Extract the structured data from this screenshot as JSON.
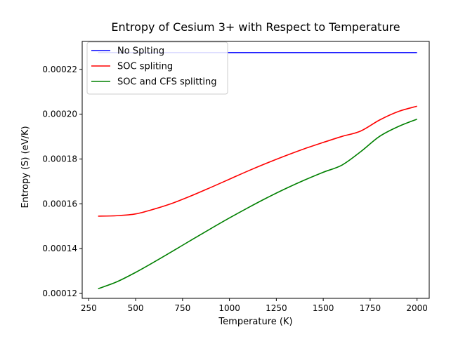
{
  "chart_data": {
    "type": "line",
    "title": "Entropy of Cesium 3+ with Respect to Temperature",
    "xlabel": "Temperature (K)",
    "ylabel": "Entropy (S) (eV/K)",
    "xlim": [
      215,
      2065
    ],
    "ylim": [
      0.0001178,
      0.0002325
    ],
    "xticks": [
      250,
      500,
      750,
      1000,
      1250,
      1500,
      1750,
      2000
    ],
    "xtick_labels": [
      "250",
      "500",
      "750",
      "1000",
      "1250",
      "1500",
      "1750",
      "2000"
    ],
    "yticks": [
      0.00012,
      0.00014,
      0.00016,
      0.00018,
      0.0002,
      0.00022
    ],
    "ytick_labels": [
      "0.00012",
      "0.00014",
      "0.00016",
      "0.00018",
      "0.00020",
      "0.00022"
    ],
    "grid": false,
    "legend_position": "top-left",
    "x": [
      300,
      400,
      500,
      600,
      700,
      800,
      900,
      1000,
      1100,
      1200,
      1300,
      1400,
      1500,
      1600,
      1700,
      1800,
      1900,
      2000
    ],
    "series": [
      {
        "name": "No Splting",
        "color": "#0000ff",
        "values": [
          0.0002275,
          0.0002275,
          0.0002275,
          0.0002275,
          0.0002275,
          0.0002275,
          0.0002275,
          0.0002275,
          0.0002275,
          0.0002275,
          0.0002275,
          0.0002275,
          0.0002275,
          0.0002275,
          0.0002275,
          0.0002275,
          0.0002275,
          0.0002275
        ]
      },
      {
        "name": "SOC spliting",
        "color": "#ff0000",
        "values": [
          0.0001545,
          0.0001547,
          0.0001555,
          0.0001577,
          0.0001604,
          0.0001637,
          0.0001673,
          0.000171,
          0.0001747,
          0.0001782,
          0.0001815,
          0.0001846,
          0.0001874,
          0.0001901,
          0.0001925,
          0.0001974,
          0.0002012,
          0.0002036
        ]
      },
      {
        "name": "SOC and CFS splitting",
        "color": "#008000",
        "values": [
          0.0001221,
          0.0001252,
          0.0001294,
          0.0001341,
          0.000139,
          0.000144,
          0.0001489,
          0.0001537,
          0.0001583,
          0.0001627,
          0.0001668,
          0.0001706,
          0.0001741,
          0.0001773,
          0.0001833,
          0.0001901,
          0.0001945,
          0.0001978
        ]
      }
    ]
  }
}
